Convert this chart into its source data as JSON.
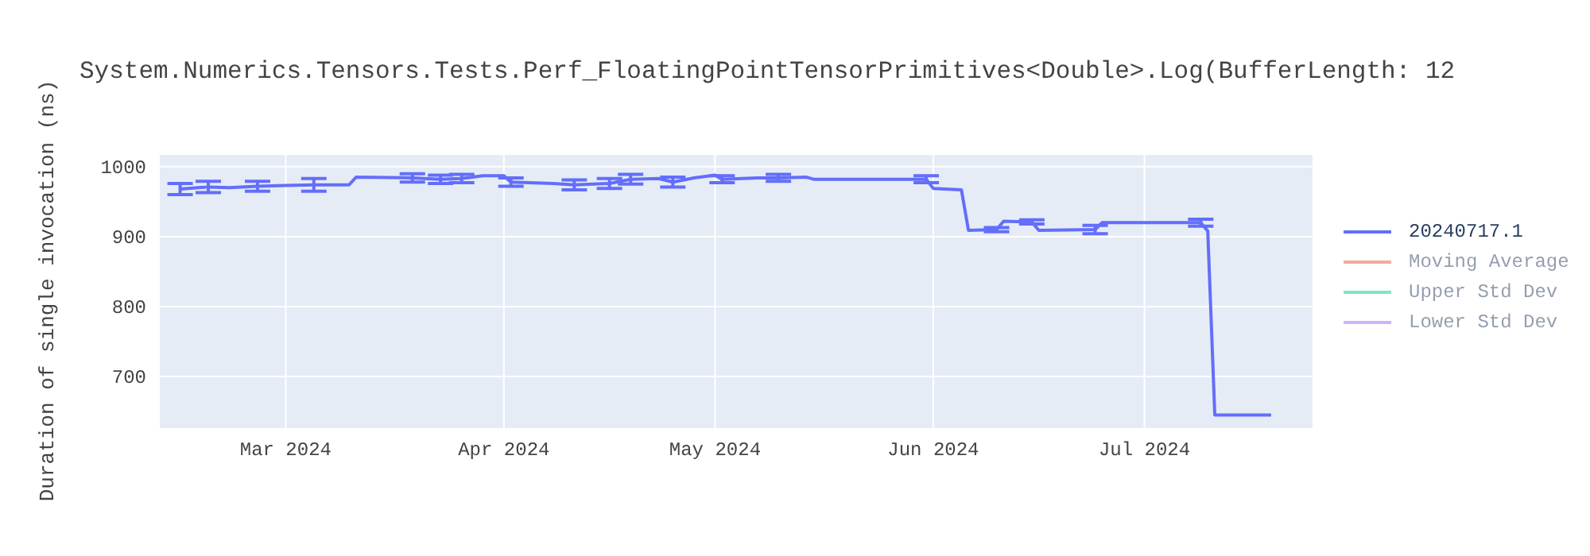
{
  "chart_data": {
    "type": "line",
    "title": "System.Numerics.Tensors.Tests.Perf_FloatingPointTensorPrimitives<Double>.Log(BufferLength: 12",
    "ylabel": "Duration of single invocation (ns)",
    "x": [
      "2024-02-15",
      "2024-02-19",
      "2024-02-22",
      "2024-02-26",
      "2024-03-01",
      "2024-03-05",
      "2024-03-10",
      "2024-03-11",
      "2024-03-19",
      "2024-03-23",
      "2024-03-26",
      "2024-03-29",
      "2024-04-01",
      "2024-04-02",
      "2024-04-08",
      "2024-04-11",
      "2024-04-16",
      "2024-04-19",
      "2024-04-23",
      "2024-04-25",
      "2024-04-28",
      "2024-05-01",
      "2024-05-02",
      "2024-05-07",
      "2024-05-10",
      "2024-05-14",
      "2024-05-15",
      "2024-05-31",
      "2024-06-01",
      "2024-06-05",
      "2024-06-06",
      "2024-06-10",
      "2024-06-11",
      "2024-06-15",
      "2024-06-16",
      "2024-06-24",
      "2024-06-25",
      "2024-07-09",
      "2024-07-10",
      "2024-07-11",
      "2024-07-19"
    ],
    "series": [
      {
        "name": "20240717.1",
        "color": "#636efa",
        "values": [
          968,
          971,
          970,
          972,
          973,
          974,
          974,
          985,
          984,
          982,
          983,
          987,
          987,
          978,
          976,
          974,
          976,
          982,
          983,
          978,
          984,
          988,
          982,
          984,
          984,
          985,
          982,
          982,
          969,
          967,
          909,
          910,
          922,
          921,
          909,
          910,
          920,
          920,
          908,
          645,
          645
        ],
        "errors": [
          8,
          8,
          null,
          7,
          null,
          9,
          null,
          null,
          6,
          6,
          6,
          null,
          null,
          6,
          null,
          7,
          7,
          7,
          null,
          7,
          null,
          null,
          5,
          null,
          5,
          null,
          null,
          5,
          null,
          null,
          null,
          3,
          null,
          3,
          null,
          6,
          null,
          5,
          null,
          null,
          null
        ]
      },
      {
        "name": "Moving Average",
        "color": "#ef553b",
        "values": [
          null,
          null,
          null,
          null,
          null,
          null,
          null,
          null,
          null,
          null,
          null,
          null,
          null,
          null,
          null,
          null,
          null,
          null,
          null,
          null,
          null,
          null,
          null,
          null,
          null,
          null,
          null,
          null,
          null,
          null,
          null,
          null,
          null,
          null,
          null,
          null,
          null,
          null,
          null,
          null,
          null
        ]
      },
      {
        "name": "Upper Std Dev",
        "color": "#00cc96",
        "values": [
          null,
          null,
          null,
          null,
          null,
          null,
          null,
          null,
          null,
          null,
          null,
          null,
          null,
          null,
          null,
          null,
          null,
          null,
          null,
          null,
          null,
          null,
          null,
          null,
          null,
          null,
          null,
          null,
          null,
          null,
          null,
          null,
          null,
          null,
          null,
          null,
          null,
          null,
          null,
          null,
          null
        ]
      },
      {
        "name": "Lower Std Dev",
        "color": "#ab63fa",
        "values": [
          null,
          null,
          null,
          null,
          null,
          null,
          null,
          null,
          null,
          null,
          null,
          null,
          null,
          null,
          null,
          null,
          null,
          null,
          null,
          null,
          null,
          null,
          null,
          null,
          null,
          null,
          null,
          null,
          null,
          null,
          null,
          null,
          null,
          null,
          null,
          null,
          null,
          null,
          null,
          null,
          null
        ]
      }
    ],
    "xlim": [
      "2024-02-12",
      "2024-07-25"
    ],
    "xticks": [
      {
        "value": "2024-03-01",
        "label": "Mar 2024"
      },
      {
        "value": "2024-04-01",
        "label": "Apr 2024"
      },
      {
        "value": "2024-05-01",
        "label": "May 2024"
      },
      {
        "value": "2024-06-01",
        "label": "Jun 2024"
      },
      {
        "value": "2024-07-01",
        "label": "Jul 2024"
      }
    ],
    "ylim": [
      625,
      1018
    ],
    "yticks": [
      700,
      800,
      900,
      1000
    ],
    "grid": true,
    "legend": "top right",
    "marker": "none",
    "line_style": "solid"
  }
}
